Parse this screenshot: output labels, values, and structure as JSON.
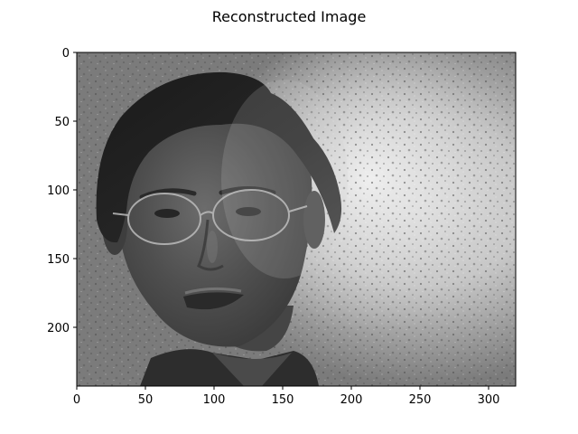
{
  "figure": {
    "title": "Reconstructed Image"
  },
  "image": {
    "description_kind": "grayscale photograph",
    "colormap": "gray"
  },
  "axes": {
    "x_ticks": [
      "0",
      "50",
      "100",
      "150",
      "200",
      "250",
      "300"
    ],
    "y_ticks": [
      "0",
      "50",
      "100",
      "150",
      "200"
    ],
    "x_range": [
      0,
      320
    ],
    "y_range": [
      0,
      243
    ],
    "y_inverted": true
  }
}
